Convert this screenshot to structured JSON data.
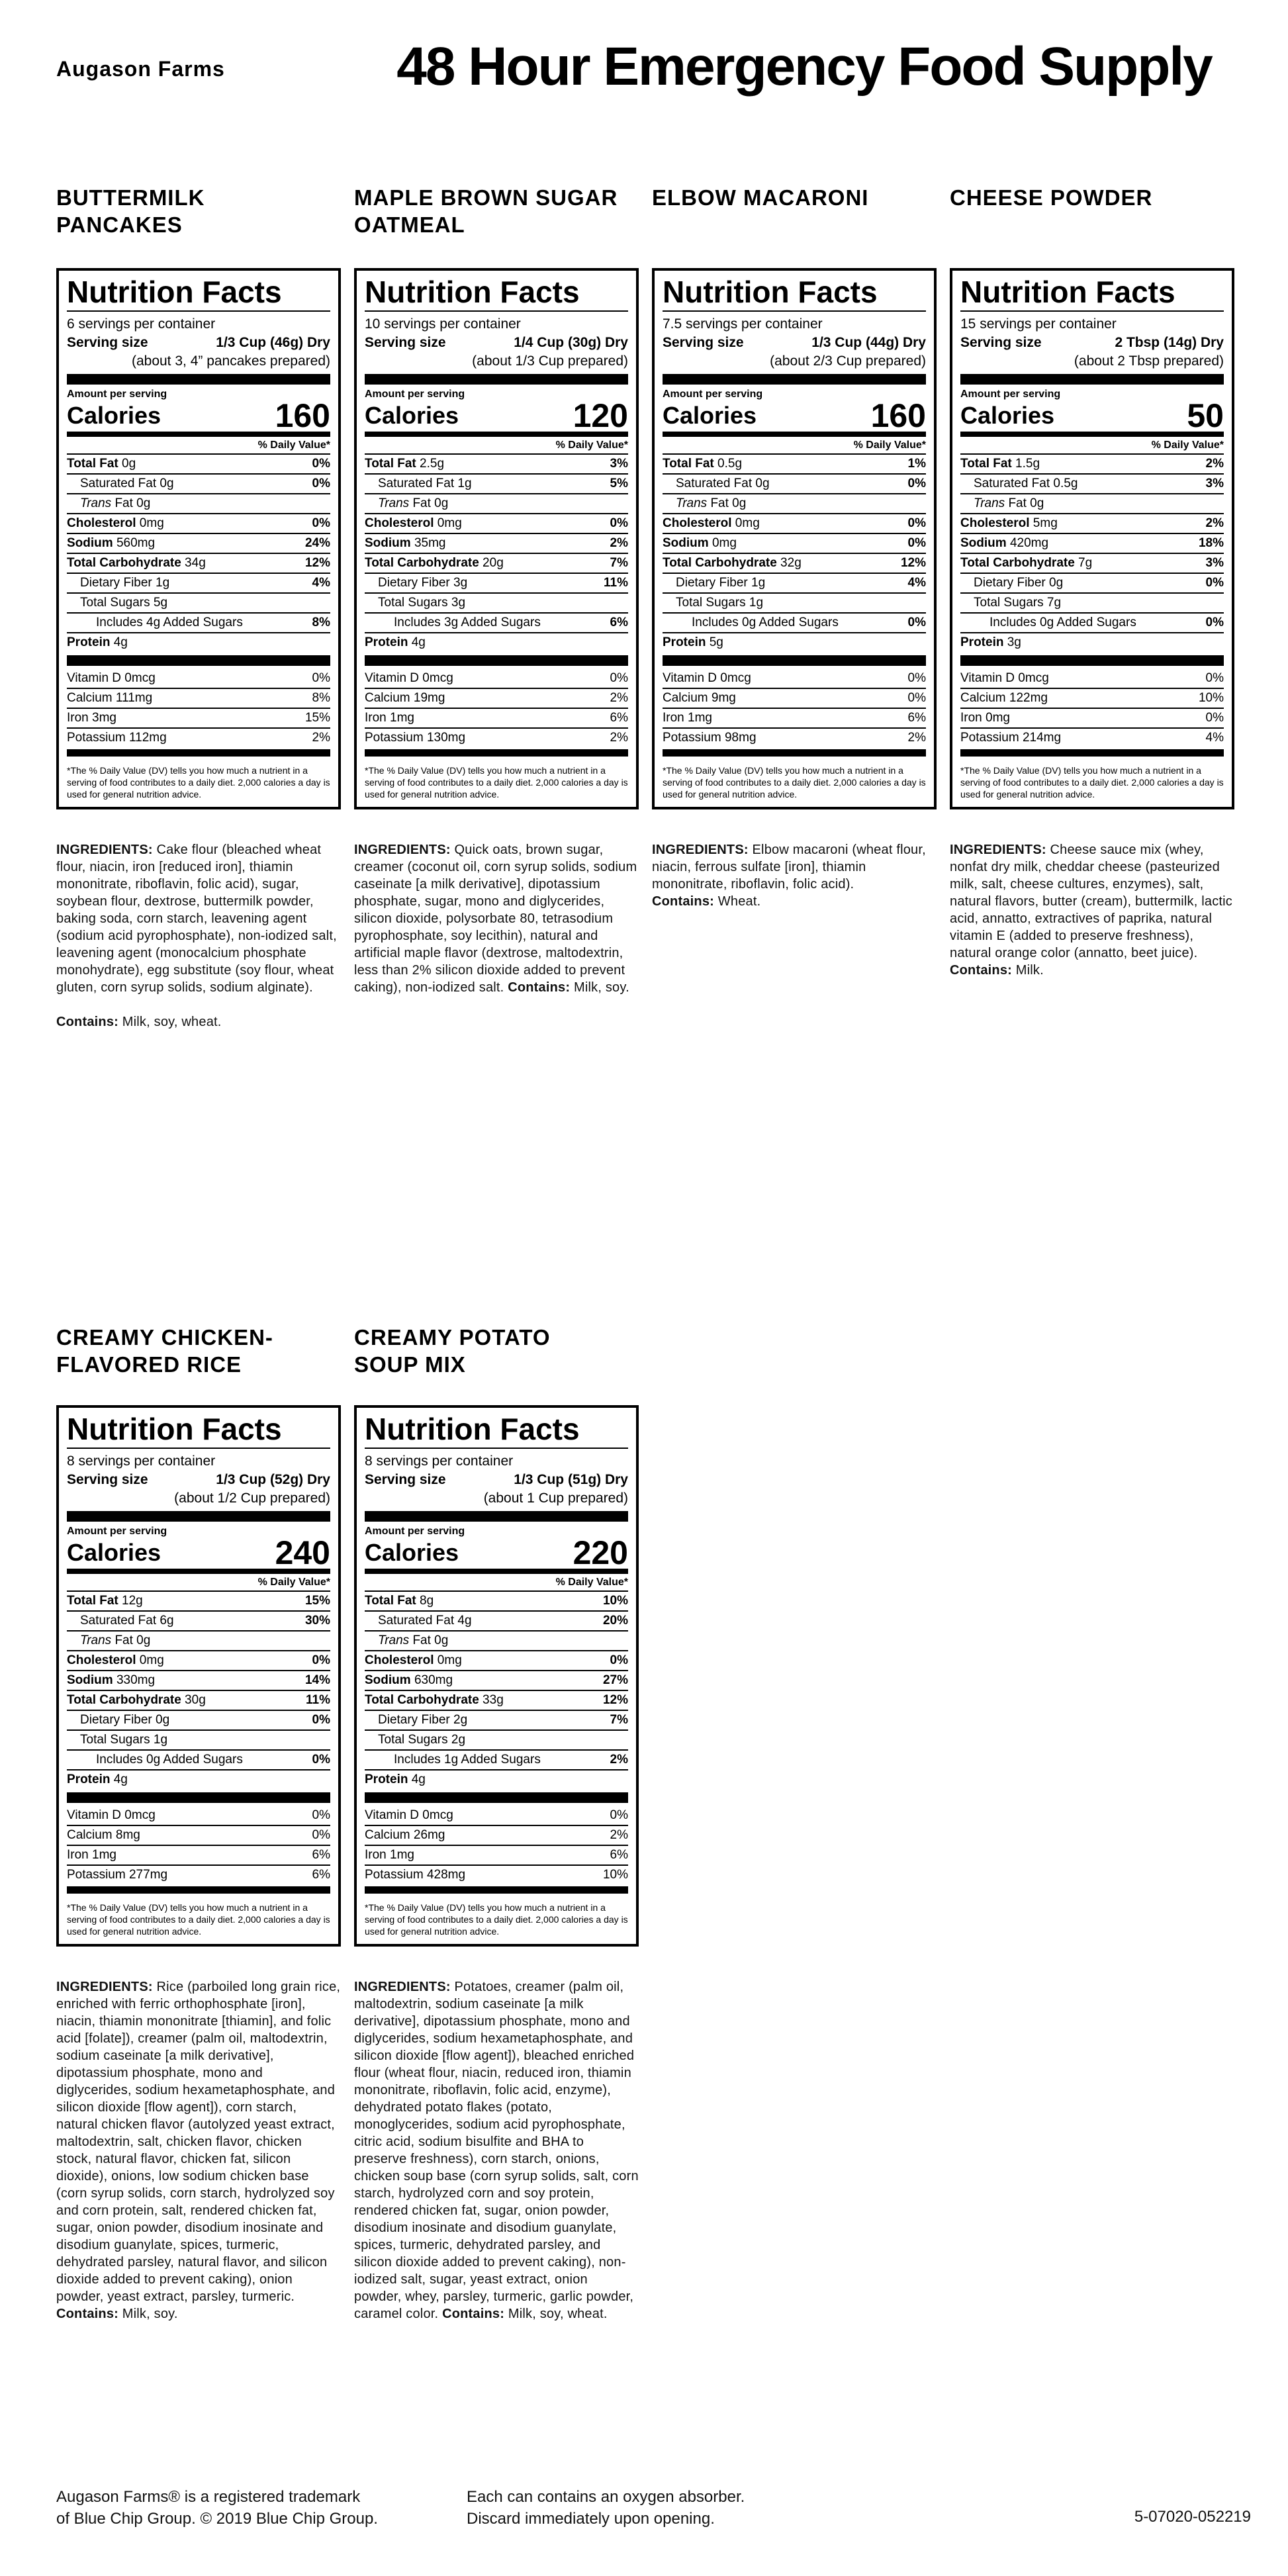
{
  "header": {
    "brand": "Augason Farms",
    "title": "48 Hour Emergency Food Supply"
  },
  "shared": {
    "nf_title": "Nutrition Facts",
    "serving_size_label": "Serving size",
    "amount_per_serving": "Amount per serving",
    "calories_label": "Calories",
    "daily_value_header": "% Daily Value*",
    "ingredients_label": "INGREDIENTS:",
    "contains_label": "Contains:",
    "disclaimer": "*The % Daily Value (DV) tells you how much a nutrient in a serving of food contributes to a daily diet. 2,000 calories a day is used for general nutrition advice."
  },
  "products": [
    {
      "name_line1": "BUTTERMILK",
      "name_line2": "PANCAKES",
      "servings": "6 servings per container",
      "serving_size": "1/3 Cup (46g) Dry",
      "prepared": "(about 3, 4” pancakes prepared)",
      "calories": "160",
      "rows": [
        {
          "name": "Total Fat",
          "amount": "0g",
          "dv": "0%",
          "indent": 0,
          "bold": true
        },
        {
          "name": "Saturated Fat",
          "amount": "0g",
          "dv": "0%",
          "indent": 1
        },
        {
          "name": "Trans Fat",
          "amount": "0g",
          "dv": "",
          "indent": 1,
          "trans": true
        },
        {
          "name": "Cholesterol",
          "amount": "0mg",
          "dv": "0%",
          "indent": 0,
          "bold": true
        },
        {
          "name": "Sodium",
          "amount": "560mg",
          "dv": "24%",
          "indent": 0,
          "bold": true
        },
        {
          "name": "Total Carbohydrate",
          "amount": "34g",
          "dv": "12%",
          "indent": 0,
          "bold": true
        },
        {
          "name": "Dietary Fiber",
          "amount": "1g",
          "dv": "4%",
          "indent": 1
        },
        {
          "name": "Total Sugars",
          "amount": "5g",
          "dv": "",
          "indent": 1
        },
        {
          "name": "Includes 4g Added Sugars",
          "amount": "",
          "dv": "8%",
          "indent": 2
        },
        {
          "name": "Protein",
          "amount": "4g",
          "dv": "",
          "indent": 0,
          "bold": true
        }
      ],
      "vitamins": [
        {
          "name": "Vitamin D",
          "amount": "0mcg",
          "dv": "0%"
        },
        {
          "name": "Calcium",
          "amount": "111mg",
          "dv": "8%"
        },
        {
          "name": "Iron",
          "amount": "3mg",
          "dv": "15%"
        },
        {
          "name": "Potassium",
          "amount": "112mg",
          "dv": "2%"
        }
      ],
      "ingredients": "Cake flour (bleached wheat flour, niacin, iron [reduced iron], thiamin mononitrate, riboflavin, folic acid), sugar, soybean flour, dextrose, buttermilk powder, baking soda, corn starch, leavening agent (sodium acid pyrophosphate), non-iodized salt, leavening agent (monocalcium phosphate monohydrate), egg substitute (soy flour, wheat gluten, corn syrup solids, sodium alginate).",
      "contains": "Milk, soy, wheat.",
      "contains_style": "paragraph"
    },
    {
      "name_line1": "MAPLE BROWN SUGAR",
      "name_line2": "OATMEAL",
      "servings": "10 servings per container",
      "serving_size": "1/4 Cup (30g) Dry",
      "prepared": "(about 1/3 Cup prepared)",
      "calories": "120",
      "rows": [
        {
          "name": "Total Fat",
          "amount": "2.5g",
          "dv": "3%",
          "indent": 0,
          "bold": true
        },
        {
          "name": "Saturated Fat",
          "amount": "1g",
          "dv": "5%",
          "indent": 1
        },
        {
          "name": "Trans Fat",
          "amount": "0g",
          "dv": "",
          "indent": 1,
          "trans": true
        },
        {
          "name": "Cholesterol",
          "amount": "0mg",
          "dv": "0%",
          "indent": 0,
          "bold": true
        },
        {
          "name": "Sodium",
          "amount": "35mg",
          "dv": "2%",
          "indent": 0,
          "bold": true
        },
        {
          "name": "Total Carbohydrate",
          "amount": "20g",
          "dv": "7%",
          "indent": 0,
          "bold": true
        },
        {
          "name": "Dietary Fiber",
          "amount": "3g",
          "dv": "11%",
          "indent": 1
        },
        {
          "name": "Total Sugars",
          "amount": "3g",
          "dv": "",
          "indent": 1
        },
        {
          "name": "Includes 3g Added Sugars",
          "amount": "",
          "dv": "6%",
          "indent": 2
        },
        {
          "name": "Protein",
          "amount": "4g",
          "dv": "",
          "indent": 0,
          "bold": true
        }
      ],
      "vitamins": [
        {
          "name": "Vitamin D",
          "amount": "0mcg",
          "dv": "0%"
        },
        {
          "name": "Calcium",
          "amount": "19mg",
          "dv": "2%"
        },
        {
          "name": "Iron",
          "amount": "1mg",
          "dv": "6%"
        },
        {
          "name": "Potassium",
          "amount": "130mg",
          "dv": "2%"
        }
      ],
      "ingredients": "Quick oats, brown sugar, creamer (coconut oil, corn syrup solids, sodium caseinate [a milk derivative], dipotassium phosphate, sugar, mono and diglycerides, silicon dioxide, polysorbate 80, tetrasodium pyrophosphate, soy lecithin), natural and artificial maple flavor (dextrose, maltodextrin, less than 2% silicon dioxide added to prevent caking), non-iodized salt.",
      "contains": "Milk, soy.",
      "contains_style": "inline"
    },
    {
      "name_line1": "ELBOW MACARONI",
      "name_line2": "",
      "servings": "7.5 servings per container",
      "serving_size": "1/3 Cup (44g) Dry",
      "prepared": "(about 2/3 Cup prepared)",
      "calories": "160",
      "rows": [
        {
          "name": "Total Fat",
          "amount": "0.5g",
          "dv": "1%",
          "indent": 0,
          "bold": true
        },
        {
          "name": "Saturated Fat",
          "amount": "0g",
          "dv": "0%",
          "indent": 1
        },
        {
          "name": "Trans Fat",
          "amount": "0g",
          "dv": "",
          "indent": 1,
          "trans": true
        },
        {
          "name": "Cholesterol",
          "amount": "0mg",
          "dv": "0%",
          "indent": 0,
          "bold": true
        },
        {
          "name": "Sodium",
          "amount": "0mg",
          "dv": "0%",
          "indent": 0,
          "bold": true
        },
        {
          "name": "Total Carbohydrate",
          "amount": "32g",
          "dv": "12%",
          "indent": 0,
          "bold": true
        },
        {
          "name": "Dietary Fiber",
          "amount": "1g",
          "dv": "4%",
          "indent": 1
        },
        {
          "name": "Total Sugars",
          "amount": "1g",
          "dv": "",
          "indent": 1
        },
        {
          "name": "Includes 0g Added Sugars",
          "amount": "",
          "dv": "0%",
          "indent": 2
        },
        {
          "name": "Protein",
          "amount": "5g",
          "dv": "",
          "indent": 0,
          "bold": true
        }
      ],
      "vitamins": [
        {
          "name": "Vitamin D",
          "amount": "0mcg",
          "dv": "0%"
        },
        {
          "name": "Calcium",
          "amount": "9mg",
          "dv": "0%"
        },
        {
          "name": "Iron",
          "amount": "1mg",
          "dv": "6%"
        },
        {
          "name": "Potassium",
          "amount": "98mg",
          "dv": "2%"
        }
      ],
      "ingredients": "Elbow macaroni (wheat flour, niacin, ferrous sulfate [iron], thiamin mononitrate, riboflavin, folic acid).",
      "contains": "Wheat.",
      "contains_style": "newline"
    },
    {
      "name_line1": "CHEESE POWDER",
      "name_line2": "",
      "servings": "15 servings per container",
      "serving_size": "2 Tbsp (14g) Dry",
      "prepared": "(about 2 Tbsp prepared)",
      "calories": "50",
      "rows": [
        {
          "name": "Total Fat",
          "amount": "1.5g",
          "dv": "2%",
          "indent": 0,
          "bold": true
        },
        {
          "name": "Saturated Fat",
          "amount": "0.5g",
          "dv": "3%",
          "indent": 1
        },
        {
          "name": "Trans Fat",
          "amount": "0g",
          "dv": "",
          "indent": 1,
          "trans": true
        },
        {
          "name": "Cholesterol",
          "amount": "5mg",
          "dv": "2%",
          "indent": 0,
          "bold": true
        },
        {
          "name": "Sodium",
          "amount": "420mg",
          "dv": "18%",
          "indent": 0,
          "bold": true
        },
        {
          "name": "Total Carbohydrate",
          "amount": "7g",
          "dv": "3%",
          "indent": 0,
          "bold": true
        },
        {
          "name": "Dietary Fiber",
          "amount": "0g",
          "dv": "0%",
          "indent": 1
        },
        {
          "name": "Total Sugars",
          "amount": "7g",
          "dv": "",
          "indent": 1
        },
        {
          "name": "Includes 0g Added Sugars",
          "amount": "",
          "dv": "0%",
          "indent": 2
        },
        {
          "name": "Protein",
          "amount": "3g",
          "dv": "",
          "indent": 0,
          "bold": true
        }
      ],
      "vitamins": [
        {
          "name": "Vitamin D",
          "amount": "0mcg",
          "dv": "0%"
        },
        {
          "name": "Calcium",
          "amount": "122mg",
          "dv": "10%"
        },
        {
          "name": "Iron",
          "amount": "0mg",
          "dv": "0%"
        },
        {
          "name": "Potassium",
          "amount": "214mg",
          "dv": "4%"
        }
      ],
      "ingredients": "Cheese sauce mix (whey, nonfat dry milk, cheddar cheese (pasteurized milk, salt, cheese cultures, enzymes), salt, natural flavors, butter (cream), buttermilk, lactic acid, annatto, extractives of paprika, natural vitamin E (added to preserve freshness), natural orange color (annatto, beet juice).",
      "contains": "Milk.",
      "contains_style": "inline"
    },
    {
      "name_line1": "CREAMY CHICKEN-",
      "name_line2": "FLAVORED RICE",
      "servings": "8 servings per container",
      "serving_size": "1/3 Cup (52g) Dry",
      "prepared": "(about 1/2 Cup prepared)",
      "calories": "240",
      "rows": [
        {
          "name": "Total Fat",
          "amount": "12g",
          "dv": "15%",
          "indent": 0,
          "bold": true
        },
        {
          "name": "Saturated Fat",
          "amount": "6g",
          "dv": "30%",
          "indent": 1
        },
        {
          "name": "Trans Fat",
          "amount": "0g",
          "dv": "",
          "indent": 1,
          "trans": true
        },
        {
          "name": "Cholesterol",
          "amount": "0mg",
          "dv": "0%",
          "indent": 0,
          "bold": true
        },
        {
          "name": "Sodium",
          "amount": "330mg",
          "dv": "14%",
          "indent": 0,
          "bold": true
        },
        {
          "name": "Total Carbohydrate",
          "amount": "30g",
          "dv": "11%",
          "indent": 0,
          "bold": true
        },
        {
          "name": "Dietary Fiber",
          "amount": "0g",
          "dv": "0%",
          "indent": 1
        },
        {
          "name": "Total Sugars",
          "amount": "1g",
          "dv": "",
          "indent": 1
        },
        {
          "name": "Includes 0g Added Sugars",
          "amount": "",
          "dv": "0%",
          "indent": 2
        },
        {
          "name": "Protein",
          "amount": "4g",
          "dv": "",
          "indent": 0,
          "bold": true
        }
      ],
      "vitamins": [
        {
          "name": "Vitamin D",
          "amount": "0mcg",
          "dv": "0%"
        },
        {
          "name": "Calcium",
          "amount": "8mg",
          "dv": "0%"
        },
        {
          "name": "Iron",
          "amount": "1mg",
          "dv": "6%"
        },
        {
          "name": "Potassium",
          "amount": "277mg",
          "dv": "6%"
        }
      ],
      "ingredients": "Rice (parboiled long grain rice, enriched with ferric orthophosphate [iron], niacin, thiamin mononitrate [thiamin], and folic acid [folate]), creamer (palm oil, maltodextrin, sodium caseinate [a milk derivative], dipotassium phosphate, mono and diglycerides, sodium hexametaphosphate, and silicon dioxide [flow agent]), corn starch, natural chicken flavor (autolyzed yeast extract, maltodextrin, salt, chicken flavor, chicken stock, natural flavor, chicken fat, silicon dioxide), onions, low sodium chicken base (corn syrup solids, corn starch, hydrolyzed soy and corn protein, salt, rendered chicken fat, sugar, onion powder, disodium inosinate and disodium guanylate, spices, turmeric, dehydrated parsley, natural flavor, and silicon dioxide added to prevent caking), onion powder, yeast extract, parsley, turmeric.",
      "contains": "Milk, soy.",
      "contains_style": "inline"
    },
    {
      "name_line1": "CREAMY POTATO",
      "name_line2": "SOUP MIX",
      "servings": "8 servings per container",
      "serving_size": "1/3 Cup (51g) Dry",
      "prepared": "(about 1 Cup prepared)",
      "calories": "220",
      "rows": [
        {
          "name": "Total Fat",
          "amount": "8g",
          "dv": "10%",
          "indent": 0,
          "bold": true
        },
        {
          "name": "Saturated Fat",
          "amount": "4g",
          "dv": "20%",
          "indent": 1
        },
        {
          "name": "Trans Fat",
          "amount": "0g",
          "dv": "",
          "indent": 1,
          "trans": true
        },
        {
          "name": "Cholesterol",
          "amount": "0mg",
          "dv": "0%",
          "indent": 0,
          "bold": true
        },
        {
          "name": "Sodium",
          "amount": "630mg",
          "dv": "27%",
          "indent": 0,
          "bold": true
        },
        {
          "name": "Total Carbohydrate",
          "amount": "33g",
          "dv": "12%",
          "indent": 0,
          "bold": true
        },
        {
          "name": "Dietary Fiber",
          "amount": "2g",
          "dv": "7%",
          "indent": 1
        },
        {
          "name": "Total Sugars",
          "amount": "2g",
          "dv": "",
          "indent": 1
        },
        {
          "name": "Includes 1g Added Sugars",
          "amount": "",
          "dv": "2%",
          "indent": 2
        },
        {
          "name": "Protein",
          "amount": "4g",
          "dv": "",
          "indent": 0,
          "bold": true
        }
      ],
      "vitamins": [
        {
          "name": "Vitamin D",
          "amount": "0mcg",
          "dv": "0%"
        },
        {
          "name": "Calcium",
          "amount": "26mg",
          "dv": "2%"
        },
        {
          "name": "Iron",
          "amount": "1mg",
          "dv": "6%"
        },
        {
          "name": "Potassium",
          "amount": "428mg",
          "dv": "10%"
        }
      ],
      "ingredients": "Potatoes, creamer (palm oil, maltodextrin, sodium caseinate [a milk derivative], dipotassium phosphate, mono and diglycerides, sodium hexametaphosphate, and silicon dioxide [flow agent]), bleached enriched flour (wheat flour, niacin, reduced iron, thiamin mononitrate, riboflavin, folic acid, enzyme), dehydrated potato flakes (potato, monoglycerides, sodium acid pyrophosphate, citric acid, sodium bisulfite and BHA to preserve freshness), corn starch, onions, chicken soup base (corn syrup solids, salt, corn starch, hydrolyzed corn and soy protein, rendered chicken fat, sugar, onion powder, disodium inosinate and disodium guanylate, spices, turmeric, dehydrated parsley, and silicon dioxide added to prevent caking), non-iodized salt, sugar, yeast extract, onion powder, whey, parsley, turmeric, garlic powder, caramel color.",
      "contains": "Milk, soy, wheat.",
      "contains_style": "inline"
    }
  ],
  "footer": {
    "left_line1": "Augason Farms® is a registered trademark",
    "left_line2": "of Blue Chip Group. © 2019 Blue Chip Group.",
    "center_line1": "Each can contains an oxygen absorber.",
    "center_line2": "Discard immediately upon opening.",
    "code": "5-07020-052219"
  }
}
